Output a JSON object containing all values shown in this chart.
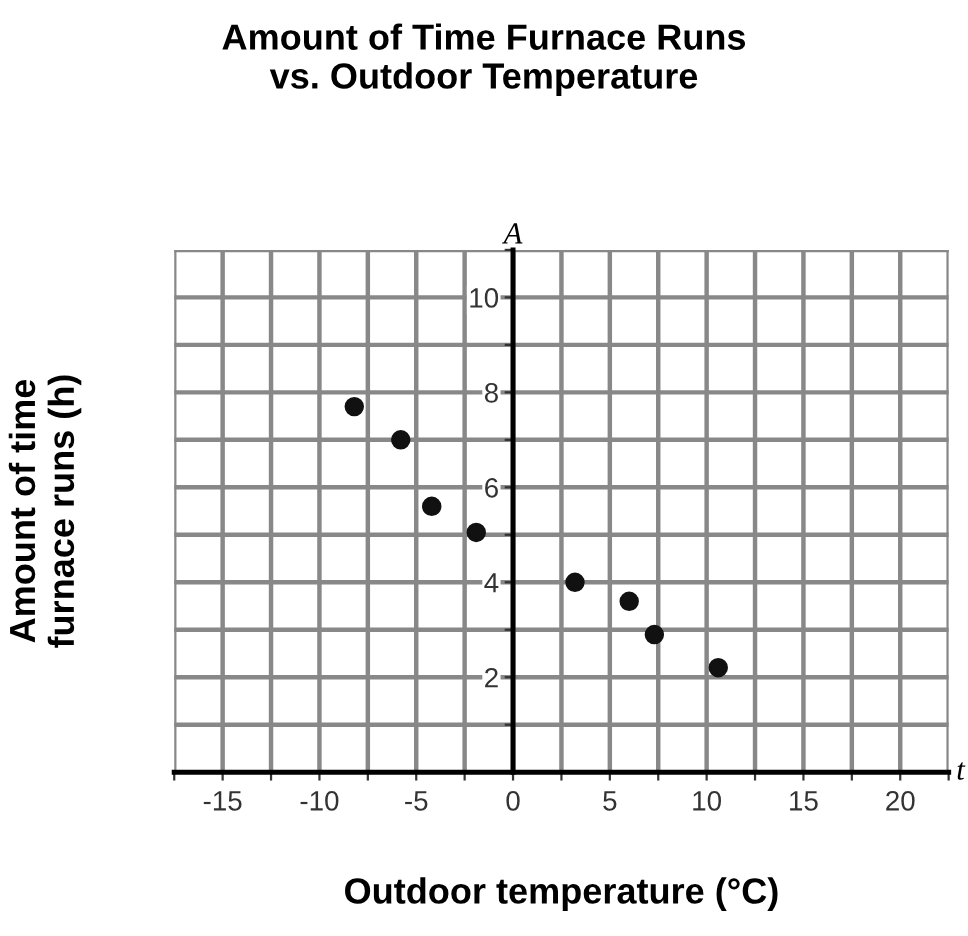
{
  "chart_data": {
    "type": "scatter",
    "title": "Amount of Time Furnace Runs\nvs. Outdoor Temperature",
    "xlabel": "Outdoor temperature (°C)",
    "ylabel": "Amount of time\nfurnace runs (h)",
    "annotations": [
      "A",
      "t"
    ],
    "x": [
      -8.2,
      -5.8,
      -4.2,
      -1.9,
      3.2,
      6.0,
      7.3,
      10.6
    ],
    "series": [
      {
        "color": "#111111",
        "values": [
          7.7,
          7.0,
          5.6,
          5.05,
          4.0,
          3.6,
          2.9,
          2.2
        ]
      }
    ],
    "marker": "circle",
    "grid": true,
    "legend": false,
    "xlim": [
      -17.5,
      22.5
    ],
    "ylim": [
      0,
      11
    ],
    "xticks": [
      {
        "value": -17.5,
        "label": null
      },
      -15,
      {
        "value": -12.5,
        "label": null
      },
      -10,
      {
        "value": -7.5,
        "label": null
      },
      -5,
      {
        "value": -2.5,
        "label": null
      },
      0,
      {
        "value": 2.5,
        "label": null
      },
      5,
      {
        "value": 7.5,
        "label": null
      },
      10,
      {
        "value": 12.5,
        "label": null
      },
      15,
      {
        "value": 17.5,
        "label": null
      },
      20,
      {
        "value": 22.5,
        "label": null
      }
    ],
    "yticks": [
      {
        "value": 1,
        "label": null
      },
      2,
      {
        "value": 3,
        "label": null
      },
      4,
      {
        "value": 5,
        "label": null
      },
      6,
      {
        "value": 7,
        "label": null
      },
      8,
      {
        "value": 9,
        "label": null
      },
      10,
      {
        "value": 11,
        "label": null
      }
    ]
  }
}
